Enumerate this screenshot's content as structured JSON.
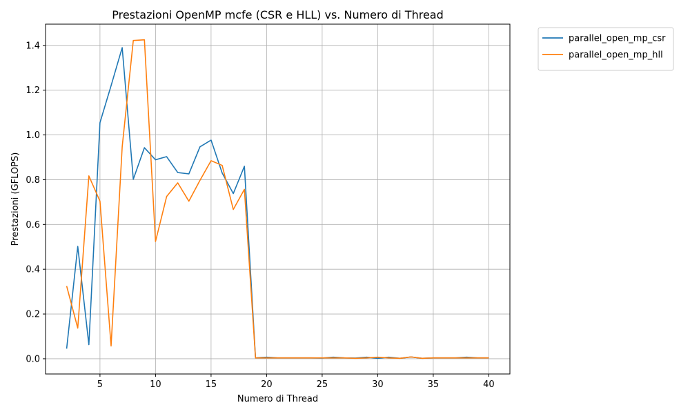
{
  "chart_data": {
    "type": "line",
    "title": "Prestazioni OpenMP mcfe (CSR e HLL) vs. Numero di Thread",
    "xlabel": "Numero di Thread",
    "ylabel": "Prestazioni (GFLOPS)",
    "xlim": [
      0.1,
      41.9
    ],
    "ylim": [
      -0.068,
      1.495
    ],
    "xticks": [
      5,
      10,
      15,
      20,
      25,
      30,
      35,
      40
    ],
    "yticks": [
      0.0,
      0.2,
      0.4,
      0.6,
      0.8,
      1.0,
      1.2,
      1.4
    ],
    "grid": true,
    "legend_position": "outside-top-right",
    "x": [
      2,
      3,
      4,
      5,
      6,
      7,
      8,
      9,
      10,
      11,
      12,
      13,
      14,
      15,
      16,
      17,
      18,
      19,
      20,
      21,
      22,
      23,
      24,
      25,
      26,
      27,
      28,
      29,
      30,
      31,
      32,
      33,
      34,
      35,
      36,
      37,
      38,
      39,
      40
    ],
    "series": [
      {
        "name": "parallel_open_mp_csr",
        "color": "#1f77b4",
        "values": [
          0.045,
          0.502,
          0.063,
          1.055,
          1.22,
          1.39,
          0.802,
          0.943,
          0.889,
          0.903,
          0.832,
          0.826,
          0.947,
          0.977,
          0.83,
          0.738,
          0.86,
          0.004,
          0.007,
          0.004,
          0.004,
          0.004,
          0.004,
          0.003,
          0.007,
          0.004,
          0.003,
          0.007,
          0.002,
          0.007,
          0.002,
          0.008,
          0.002,
          0.004,
          0.004,
          0.004,
          0.007,
          0.004,
          0.004
        ]
      },
      {
        "name": "parallel_open_mp_hll",
        "color": "#ff7f0e",
        "values": [
          0.325,
          0.137,
          0.817,
          0.704,
          0.057,
          0.947,
          1.422,
          1.425,
          0.524,
          0.725,
          0.786,
          0.704,
          0.797,
          0.885,
          0.864,
          0.667,
          0.757,
          0.004,
          0.004,
          0.004,
          0.004,
          0.004,
          0.004,
          0.004,
          0.004,
          0.004,
          0.002,
          0.004,
          0.007,
          0.004,
          0.002,
          0.008,
          0.002,
          0.004,
          0.004,
          0.004,
          0.004,
          0.004,
          0.004
        ]
      }
    ]
  }
}
